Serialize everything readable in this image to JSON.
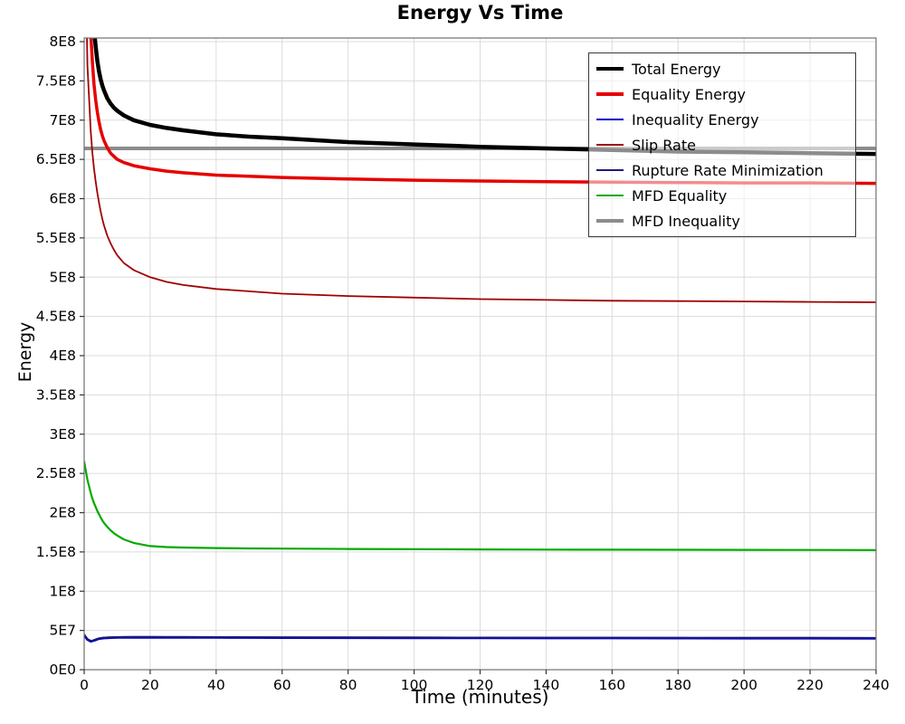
{
  "chart_data": {
    "type": "line",
    "title": "Energy Vs Time",
    "xlabel": "Time (minutes)",
    "ylabel": "Energy",
    "xlim": [
      0,
      240
    ],
    "ylim": [
      0,
      800000000.0
    ],
    "grid": true,
    "legend_position": "top-right",
    "x_ticks": {
      "values": [
        0,
        20,
        40,
        60,
        80,
        100,
        120,
        140,
        160,
        180,
        200,
        220,
        240
      ],
      "labels": [
        "0",
        "20",
        "40",
        "60",
        "80",
        "100",
        "120",
        "140",
        "160",
        "180",
        "200",
        "220",
        "240"
      ]
    },
    "y_ticks": {
      "values": [
        0,
        50000000.0,
        100000000.0,
        150000000.0,
        200000000.0,
        250000000.0,
        300000000.0,
        350000000.0,
        400000000.0,
        450000000.0,
        500000000.0,
        550000000.0,
        600000000.0,
        650000000.0,
        700000000.0,
        750000000.0,
        800000000.0
      ],
      "labels": [
        "0E0",
        "5E7",
        "1E8",
        "1.5E8",
        "2E8",
        "2.5E8",
        "3E8",
        "3.5E8",
        "4E8",
        "4.5E8",
        "5E8",
        "5.5E8",
        "6E8",
        "6.5E8",
        "7E8",
        "7.5E8",
        "8E8"
      ]
    },
    "draw_order": [
      6,
      3,
      5,
      2,
      4,
      1,
      0
    ],
    "series": [
      {
        "name": "Total Energy",
        "color": "#000000",
        "width": 4.5,
        "x": [
          0,
          1,
          2,
          2.5,
          3,
          3.5,
          4,
          4.5,
          5,
          5.5,
          6,
          7,
          8,
          9,
          10,
          12,
          15,
          20,
          25,
          30,
          40,
          50,
          60,
          80,
          100,
          120,
          140,
          160,
          180,
          200,
          220,
          240
        ],
        "y": [
          1200000000.0,
          1020000000.0,
          890000000.0,
          850000000.0,
          815000000.0,
          793000000.0,
          775000000.0,
          762000000.0,
          752000000.0,
          744000000.0,
          738000000.0,
          728000000.0,
          721000000.0,
          716000000.0,
          712000000.0,
          706000000.0,
          700000000.0,
          694000000.0,
          690000000.0,
          687000000.0,
          682000000.0,
          679000000.0,
          677000000.0,
          672000000.0,
          669000000.0,
          666000000.0,
          664000000.0,
          662000000.0,
          660000000.0,
          659000000.0,
          658000000.0,
          657000000.0
        ]
      },
      {
        "name": "Equality Energy",
        "color": "#e60000",
        "width": 3.5,
        "x": [
          0,
          1,
          2,
          2.5,
          3,
          3.5,
          4,
          4.5,
          5,
          5.5,
          6,
          7,
          8,
          9,
          10,
          12,
          15,
          20,
          25,
          30,
          40,
          50,
          60,
          80,
          100,
          120,
          140,
          160,
          180,
          200,
          220,
          240
        ],
        "y": [
          1100000000.0,
          930000000.0,
          810000000.0,
          774000000.0,
          745000000.0,
          725000000.0,
          710000000.0,
          698000000.0,
          688000000.0,
          680000000.0,
          674000000.0,
          665000000.0,
          658000000.0,
          654000000.0,
          650000000.0,
          646000000.0,
          642000000.0,
          638000000.0,
          635000000.0,
          633000000.0,
          630000000.0,
          628500000.0,
          627000000.0,
          625000000.0,
          623500000.0,
          622500000.0,
          621500000.0,
          621000000.0,
          620500000.0,
          620000000.0,
          620000000.0,
          619500000.0
        ]
      },
      {
        "name": "Inequality Energy",
        "color": "#0000cc",
        "width": 2.8,
        "x": [
          0,
          1,
          2,
          2.5,
          3,
          3.5,
          4,
          4.5,
          5,
          5.5,
          6,
          7,
          8,
          9,
          10,
          12,
          15,
          20,
          25,
          30,
          40,
          50,
          60,
          80,
          100,
          120,
          140,
          160,
          180,
          200,
          220,
          240
        ],
        "y": [
          44000000.0,
          38500000.0,
          36200000.0,
          36600000.0,
          37200000.0,
          38000000.0,
          38800000.0,
          39400000.0,
          39800000.0,
          40100000.0,
          40300000.0,
          40600000.0,
          40800000.0,
          40900000.0,
          41000000.0,
          41100000.0,
          41200000.0,
          41200000.0,
          41200000.0,
          41100000.0,
          41000000.0,
          40900000.0,
          40800000.0,
          40700000.0,
          40600000.0,
          40500000.0,
          40400000.0,
          40300000.0,
          40200000.0,
          40100000.0,
          40100000.0,
          40000000.0
        ]
      },
      {
        "name": "Slip Rate",
        "color": "#a00000",
        "width": 1.8,
        "x": [
          0,
          1,
          2,
          2.5,
          3,
          3.5,
          4,
          4.5,
          5,
          5.5,
          6,
          7,
          8,
          9,
          10,
          12,
          15,
          20,
          25,
          30,
          40,
          50,
          60,
          80,
          100,
          120,
          140,
          160,
          180,
          200,
          220,
          240
        ],
        "y": [
          1000000000.0,
          770000000.0,
          685000000.0,
          658000000.0,
          638000000.0,
          621000000.0,
          607000000.0,
          595000000.0,
          584000000.0,
          574000000.0,
          566000000.0,
          553000000.0,
          543000000.0,
          535000000.0,
          528000000.0,
          518000000.0,
          509000000.0,
          500000000.0,
          494000000.0,
          490000000.0,
          485000000.0,
          482000000.0,
          479000000.0,
          476000000.0,
          474000000.0,
          472000000.0,
          471000000.0,
          470000000.0,
          469500000.0,
          469000000.0,
          468500000.0,
          468000000.0
        ]
      },
      {
        "name": "Rupture Rate Minimization",
        "color": "#1c1c78",
        "width": 1.8,
        "x": [
          0,
          1,
          2,
          2.5,
          3,
          3.5,
          4,
          4.5,
          5,
          5.5,
          6,
          7,
          8,
          9,
          10,
          12,
          15,
          20,
          25,
          30,
          40,
          50,
          60,
          80,
          100,
          120,
          140,
          160,
          180,
          200,
          220,
          240
        ],
        "y": [
          45000000.0,
          39200000.0,
          36800000.0,
          37200000.0,
          37800000.0,
          38600000.0,
          39400000.0,
          40000000.0,
          40400000.0,
          40700000.0,
          40900000.0,
          41200000.0,
          41400000.0,
          41500000.0,
          41600000.0,
          41700000.0,
          41800000.0,
          41800000.0,
          41700000.0,
          41700000.0,
          41600000.0,
          41500000.0,
          41400000.0,
          41200000.0,
          41100000.0,
          41000000.0,
          40900000.0,
          40800000.0,
          40700000.0,
          40600000.0,
          40600000.0,
          40500000.0
        ]
      },
      {
        "name": "MFD Equality",
        "color": "#00aa00",
        "width": 2.2,
        "x": [
          0,
          1,
          2,
          2.5,
          3,
          3.5,
          4,
          4.5,
          5,
          5.5,
          6,
          7,
          8,
          9,
          10,
          12,
          15,
          20,
          25,
          30,
          40,
          50,
          60,
          80,
          100,
          120,
          140,
          160,
          180,
          200,
          220,
          240
        ],
        "y": [
          265000000.0,
          242000000.0,
          225000000.0,
          218000000.0,
          212000000.0,
          207000000.0,
          202000000.0,
          198000000.0,
          194000000.0,
          190000000.0,
          187000000.0,
          182000000.0,
          177500000.0,
          174000000.0,
          171000000.0,
          166000000.0,
          161500000.0,
          157500000.0,
          156200000.0,
          155600000.0,
          154900000.0,
          154500000.0,
          154200000.0,
          153800000.0,
          153500000.0,
          153200000.0,
          153000000.0,
          152800000.0,
          152700000.0,
          152600000.0,
          152500000.0,
          152400000.0
        ]
      },
      {
        "name": "MFD Inequality",
        "color": "#8c8c8c",
        "width": 4,
        "x": [
          0,
          240
        ],
        "y": [
          664000000.0,
          664000000.0
        ]
      }
    ]
  }
}
